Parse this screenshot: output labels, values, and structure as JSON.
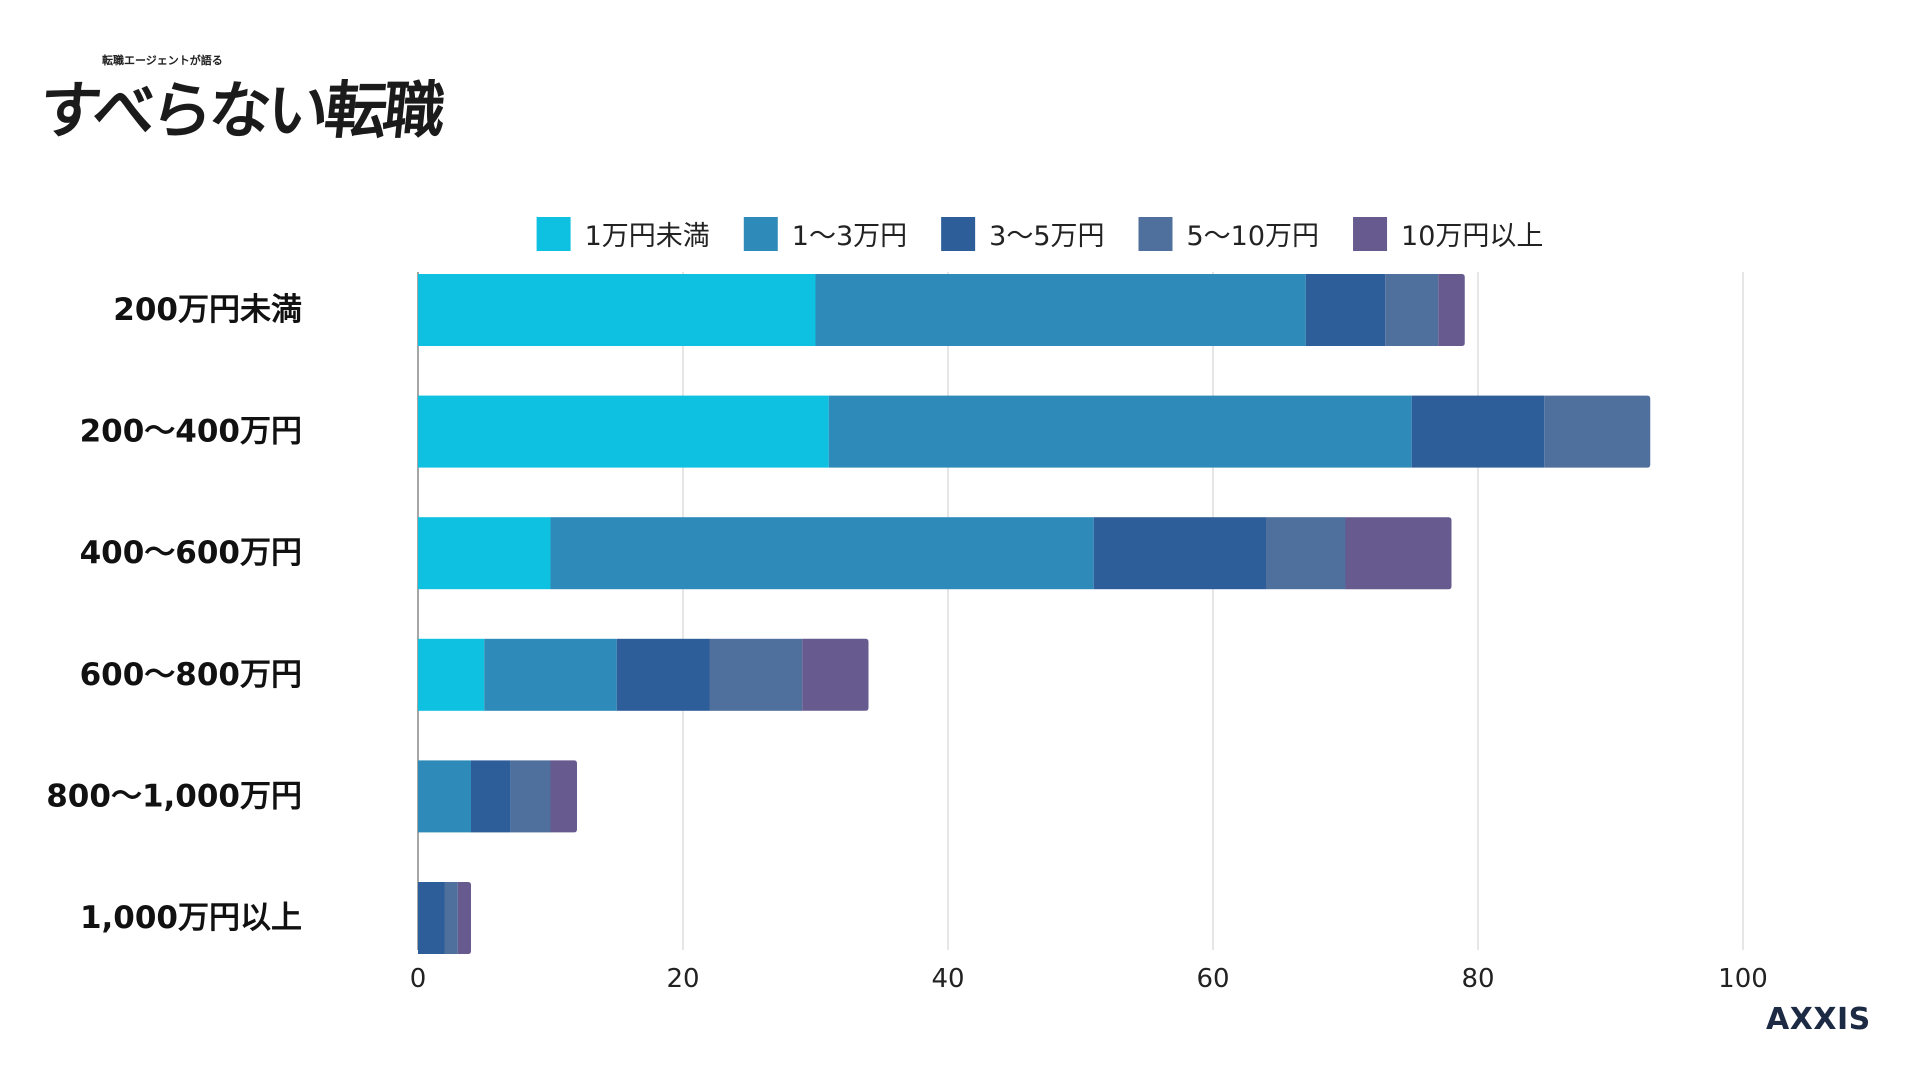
{
  "logo": {
    "subtitle": "転職エージェントが語る",
    "title": "すべらない転職"
  },
  "brand": {
    "name": "AXXIS"
  },
  "chart_data": {
    "type": "bar",
    "orientation": "horizontal",
    "stacked": true,
    "title": "",
    "xlabel": "",
    "ylabel": "",
    "xlim": [
      0,
      115
    ],
    "x_ticks": [
      0,
      20,
      40,
      60,
      80,
      100
    ],
    "grid": true,
    "legend_position": "top",
    "categories": [
      "200万円未満",
      "200〜400万円",
      "400〜600万円",
      "600〜800万円",
      "800〜1,000万円",
      "1,000万円以上"
    ],
    "series": [
      {
        "name": "1万円未満",
        "color": "#0fc1e0",
        "values": [
          30,
          31,
          10,
          5,
          0,
          0
        ]
      },
      {
        "name": "1〜3万円",
        "color": "#2e8bb9",
        "values": [
          37,
          44,
          41,
          10,
          4,
          0
        ]
      },
      {
        "name": "3〜5万円",
        "color": "#2e5e99",
        "values": [
          6,
          10,
          13,
          7,
          3,
          2
        ]
      },
      {
        "name": "5〜10万円",
        "color": "#4f6f9c",
        "values": [
          4,
          8,
          6,
          7,
          3,
          1
        ]
      },
      {
        "name": "10万円以上",
        "color": "#675a8f",
        "values": [
          2,
          0,
          8,
          5,
          2,
          1
        ]
      }
    ]
  }
}
